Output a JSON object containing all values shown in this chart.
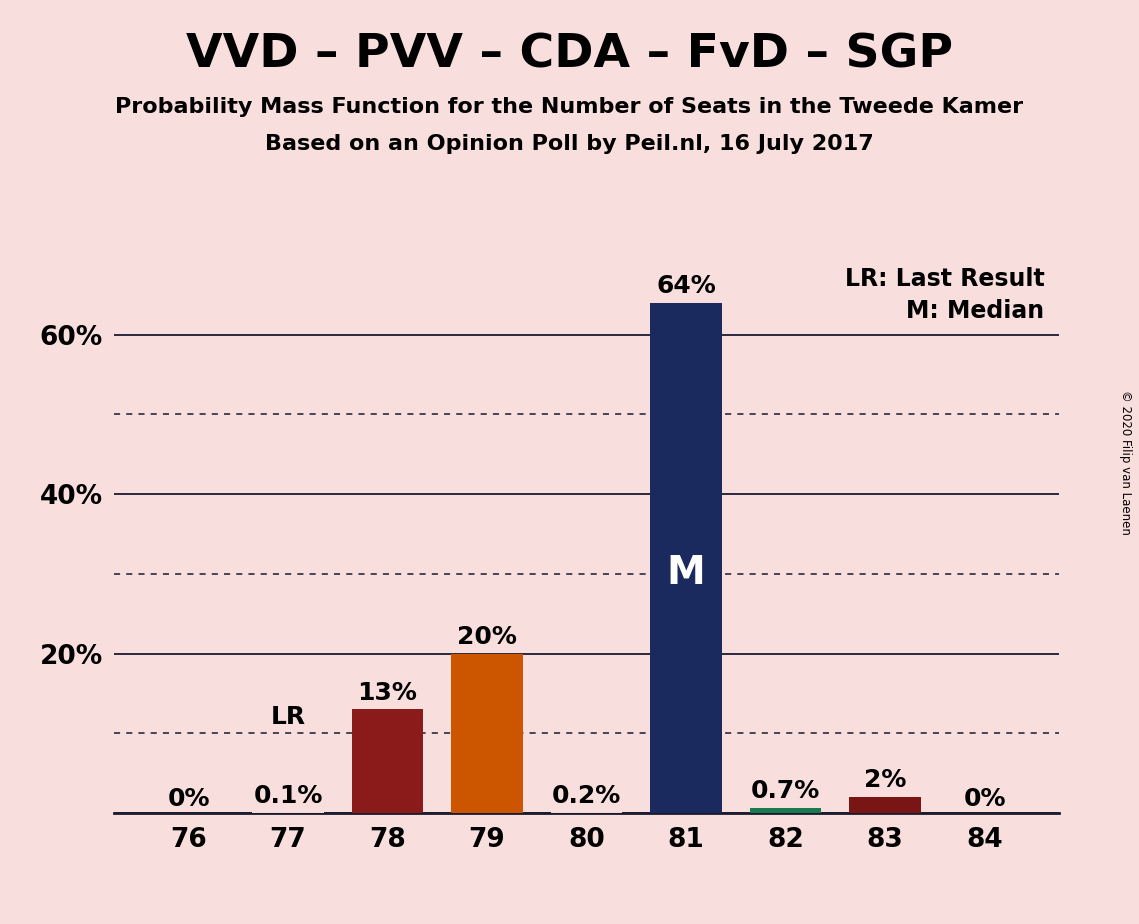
{
  "title": "VVD – PVV – CDA – FvD – SGP",
  "subtitle1": "Probability Mass Function for the Number of Seats in the Tweede Kamer",
  "subtitle2": "Based on an Opinion Poll by Peil.nl, 16 July 2017",
  "seats": [
    76,
    77,
    78,
    79,
    80,
    81,
    82,
    83,
    84
  ],
  "probabilities": [
    0.0,
    0.001,
    0.13,
    0.2,
    0.002,
    0.64,
    0.007,
    0.02,
    0.0
  ],
  "bar_colors": [
    "#f5d5d5",
    "#f5d5d5",
    "#8b1a1a",
    "#cc5500",
    "#f5d5d5",
    "#1a2a5e",
    "#1a7a50",
    "#7a1515",
    "#f5d5d5"
  ],
  "bar_labels": [
    "0%",
    "0.1%",
    "13%",
    "20%",
    "0.2%",
    "64%",
    "0.7%",
    "2%",
    "0%"
  ],
  "median_seat": 81,
  "lr_seat": 77,
  "background_color": "#f9dede",
  "ylim": [
    0,
    0.695
  ],
  "solid_yticks": [
    0.0,
    0.2,
    0.4,
    0.6
  ],
  "solid_ytick_labels": [
    "",
    "20%",
    "40%",
    "60%"
  ],
  "dotted_yticks": [
    0.1,
    0.3,
    0.5
  ],
  "legend_text1": "LR: Last Result",
  "legend_text2": "M: Median",
  "copyright_text": "© 2020 Filip van Laenen",
  "title_fontsize": 34,
  "subtitle_fontsize": 16,
  "axis_label_fontsize": 19,
  "bar_label_fontsize": 18,
  "median_label_fontsize": 28,
  "legend_fontsize": 17
}
